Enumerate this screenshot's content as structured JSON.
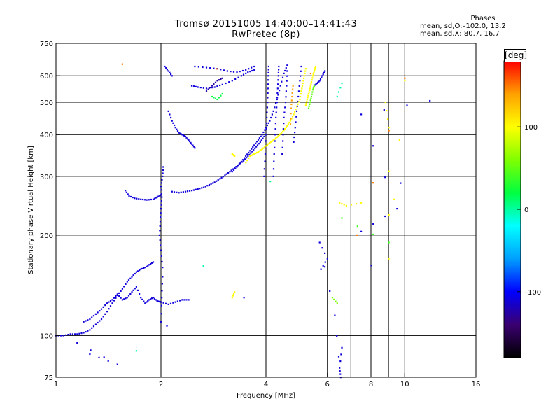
{
  "header": {
    "title_line1": "Tromsø 20151005 14:40:00–14:41:43",
    "title_line2": "RwPretec (8p)"
  },
  "phases_box": {
    "title": "Phases",
    "line1": "mean, sd,O:–102.0, 13.2",
    "line2": "mean, sd,X:  80.7, 16.7"
  },
  "colorbar": {
    "unit": "deg",
    "tick_labels": [
      "100",
      "0",
      "–100"
    ],
    "ticks": [
      100,
      0,
      -100
    ],
    "range": [
      -180,
      180
    ],
    "colors": [
      "#000000",
      "#3a0070",
      "#0000ff",
      "#00a0ff",
      "#00ffff",
      "#00ff40",
      "#80ff00",
      "#ffff00",
      "#ffa000",
      "#ff0000"
    ]
  },
  "chart_data": {
    "type": "scatter",
    "title": "Tromsø 20151005 14:40:00–14:41:43",
    "subtitle": "RwPretec (8p)",
    "xlabel": "Frequency [MHz]",
    "ylabel": "Stationary phase Virtual Height [km]",
    "x_scale": "log",
    "y_scale": "log",
    "xlim": [
      1,
      16
    ],
    "ylim": [
      75,
      750
    ],
    "x_ticks": [
      1,
      2,
      4,
      6,
      8,
      10,
      16
    ],
    "x_tick_labels": [
      "1",
      "2",
      "4",
      "6",
      "8",
      "10",
      "16"
    ],
    "y_ticks": [
      75,
      100,
      200,
      300,
      400,
      500,
      600,
      750
    ],
    "y_tick_labels": [
      "75",
      "100",
      "200",
      "300",
      "400",
      "500",
      "600",
      "750"
    ],
    "grid": true,
    "vertical_gridlines": [
      2,
      4,
      6,
      8,
      10
    ],
    "horizontal_gridlines": [
      100,
      200,
      300,
      400,
      500,
      600
    ],
    "minor_vertical_gridlines": [
      7,
      9
    ],
    "traces": [
      {
        "color_phase": -110,
        "points": [
          [
            1.0,
            100
          ],
          [
            1.05,
            100
          ],
          [
            1.1,
            101
          ],
          [
            1.15,
            101
          ],
          [
            1.2,
            102
          ],
          [
            1.25,
            104
          ],
          [
            1.3,
            108
          ],
          [
            1.35,
            112
          ],
          [
            1.4,
            118
          ],
          [
            1.45,
            125
          ],
          [
            1.5,
            132
          ],
          [
            1.55,
            138
          ],
          [
            1.6,
            145
          ],
          [
            1.65,
            150
          ],
          [
            1.7,
            155
          ],
          [
            1.75,
            158
          ],
          [
            1.8,
            160
          ],
          [
            1.85,
            163
          ],
          [
            1.9,
            166
          ]
        ]
      },
      {
        "color_phase": -110,
        "points": [
          [
            1.2,
            110
          ],
          [
            1.25,
            112
          ],
          [
            1.3,
            116
          ],
          [
            1.35,
            120
          ],
          [
            1.4,
            125
          ],
          [
            1.45,
            128
          ],
          [
            1.5,
            133
          ],
          [
            1.55,
            128
          ],
          [
            1.6,
            130
          ],
          [
            1.65,
            135
          ],
          [
            1.7,
            140
          ],
          [
            1.75,
            130
          ],
          [
            1.8,
            125
          ],
          [
            1.85,
            128
          ],
          [
            1.9,
            130
          ],
          [
            1.95,
            127
          ],
          [
            2.0,
            126
          ],
          [
            2.1,
            124
          ],
          [
            2.2,
            126
          ],
          [
            2.3,
            128
          ],
          [
            2.4,
            128
          ]
        ]
      },
      {
        "color_phase": -110,
        "points": [
          [
            1.58,
            272
          ],
          [
            1.62,
            262
          ],
          [
            1.68,
            258
          ],
          [
            1.75,
            256
          ],
          [
            1.82,
            255
          ],
          [
            1.9,
            256
          ],
          [
            1.95,
            260
          ],
          [
            2.0,
            264
          ]
        ]
      },
      {
        "color_phase": -110,
        "points": [
          [
            2.02,
            160
          ],
          [
            2.0,
            180
          ],
          [
            1.98,
            200
          ],
          [
            1.99,
            220
          ],
          [
            2.0,
            240
          ],
          [
            2.01,
            260
          ],
          [
            2.0,
            280
          ],
          [
            2.02,
            300
          ],
          [
            2.03,
            320
          ]
        ]
      },
      {
        "color_phase": -110,
        "points": [
          [
            2.0,
            110
          ],
          [
            2.01,
            130
          ],
          [
            2.02,
            150
          ]
        ]
      },
      {
        "color_phase": -110,
        "points": [
          [
            2.15,
            270
          ],
          [
            2.25,
            268
          ],
          [
            2.35,
            270
          ],
          [
            2.45,
            272
          ],
          [
            2.55,
            275
          ],
          [
            2.65,
            278
          ],
          [
            2.75,
            283
          ],
          [
            2.85,
            288
          ],
          [
            2.95,
            295
          ],
          [
            3.05,
            302
          ],
          [
            3.15,
            310
          ],
          [
            3.25,
            318
          ],
          [
            3.35,
            326
          ],
          [
            3.45,
            334
          ],
          [
            3.55,
            345
          ],
          [
            3.65,
            356
          ],
          [
            3.75,
            368
          ],
          [
            3.85,
            380
          ],
          [
            3.95,
            395
          ]
        ]
      },
      {
        "color_phase": -110,
        "points": [
          [
            3.2,
            310
          ],
          [
            3.3,
            320
          ],
          [
            3.4,
            332
          ],
          [
            3.5,
            345
          ],
          [
            3.6,
            358
          ],
          [
            3.7,
            372
          ],
          [
            3.8,
            386
          ],
          [
            3.9,
            400
          ],
          [
            4.0,
            420
          ],
          [
            4.1,
            440
          ],
          [
            4.2,
            470
          ],
          [
            4.3,
            510
          ],
          [
            4.4,
            560
          ],
          [
            4.5,
            610
          ],
          [
            4.6,
            645
          ]
        ]
      },
      {
        "color_phase": -110,
        "points": [
          [
            2.1,
            470
          ],
          [
            2.15,
            440
          ],
          [
            2.2,
            420
          ],
          [
            2.25,
            405
          ],
          [
            2.3,
            400
          ],
          [
            2.35,
            395
          ],
          [
            2.4,
            385
          ],
          [
            2.45,
            375
          ],
          [
            2.5,
            365
          ]
        ]
      },
      {
        "color_phase": -110,
        "points": [
          [
            2.45,
            560
          ],
          [
            2.55,
            555
          ],
          [
            2.7,
            550
          ],
          [
            2.85,
            555
          ],
          [
            3.0,
            565
          ],
          [
            3.2,
            580
          ],
          [
            3.4,
            600
          ],
          [
            3.55,
            615
          ],
          [
            3.7,
            625
          ]
        ]
      },
      {
        "color_phase": -110,
        "points": [
          [
            2.05,
            640
          ],
          [
            2.1,
            620
          ],
          [
            2.15,
            600
          ]
        ]
      },
      {
        "color_phase": -110,
        "points": [
          [
            2.5,
            640
          ],
          [
            2.7,
            635
          ],
          [
            2.9,
            630
          ],
          [
            3.1,
            620
          ],
          [
            3.3,
            615
          ],
          [
            3.5,
            625
          ],
          [
            3.7,
            640
          ]
        ]
      },
      {
        "color_phase": -110,
        "points": [
          [
            3.95,
            300
          ],
          [
            3.98,
            350
          ],
          [
            4.0,
            400
          ],
          [
            4.02,
            450
          ],
          [
            4.04,
            500
          ],
          [
            4.05,
            550
          ],
          [
            4.06,
            600
          ],
          [
            4.07,
            640
          ]
        ]
      },
      {
        "color_phase": -110,
        "points": [
          [
            4.2,
            300
          ],
          [
            4.22,
            350
          ],
          [
            4.25,
            400
          ],
          [
            4.27,
            450
          ],
          [
            4.3,
            500
          ],
          [
            4.32,
            550
          ],
          [
            4.34,
            600
          ],
          [
            4.35,
            640
          ]
        ]
      },
      {
        "color_phase": -110,
        "points": [
          [
            4.45,
            350
          ],
          [
            4.48,
            400
          ],
          [
            4.5,
            450
          ],
          [
            4.55,
            500
          ],
          [
            4.58,
            560
          ],
          [
            4.6,
            620
          ]
        ]
      },
      {
        "color_phase": -110,
        "points": [
          [
            4.8,
            380
          ],
          [
            4.85,
            420
          ],
          [
            4.9,
            470
          ],
          [
            4.95,
            520
          ],
          [
            5.0,
            580
          ],
          [
            5.05,
            640
          ]
        ]
      },
      {
        "color_phase": -110,
        "points": [
          [
            5.5,
            560
          ],
          [
            5.6,
            570
          ],
          [
            5.7,
            580
          ],
          [
            5.8,
            600
          ],
          [
            5.9,
            620
          ]
        ]
      },
      {
        "color_phase": 100,
        "points": [
          [
            3.5,
            330
          ],
          [
            3.6,
            345
          ],
          [
            3.7,
            350
          ],
          [
            3.8,
            355
          ],
          [
            3.9,
            362
          ],
          [
            4.0,
            370
          ],
          [
            4.1,
            378
          ],
          [
            4.2,
            385
          ],
          [
            4.3,
            393
          ],
          [
            4.4,
            402
          ],
          [
            4.5,
            412
          ],
          [
            4.6,
            425
          ],
          [
            4.7,
            440
          ],
          [
            4.8,
            460
          ],
          [
            4.9,
            485
          ],
          [
            5.0,
            510
          ],
          [
            5.05,
            540
          ],
          [
            5.1,
            570
          ],
          [
            5.15,
            600
          ],
          [
            5.2,
            630
          ]
        ]
      },
      {
        "color_phase": 100,
        "points": [
          [
            5.2,
            490
          ],
          [
            5.25,
            510
          ],
          [
            5.3,
            530
          ],
          [
            5.35,
            550
          ],
          [
            5.4,
            575
          ],
          [
            5.45,
            600
          ],
          [
            5.5,
            620
          ],
          [
            5.55,
            640
          ]
        ]
      },
      {
        "color_phase": 50,
        "points": [
          [
            5.3,
            480
          ],
          [
            5.35,
            500
          ],
          [
            5.4,
            520
          ],
          [
            5.45,
            545
          ],
          [
            5.5,
            560
          ]
        ]
      },
      {
        "color_phase": 140,
        "points": [
          [
            4.7,
            430
          ],
          [
            4.72,
            480
          ],
          [
            4.75,
            520
          ],
          [
            4.78,
            560
          ]
        ]
      },
      {
        "color_phase": -125,
        "points": [
          [
            2.7,
            540
          ],
          [
            2.8,
            560
          ],
          [
            2.9,
            580
          ],
          [
            3.0,
            590
          ]
        ]
      },
      {
        "color_phase": 20,
        "points": [
          [
            2.8,
            520
          ],
          [
            2.9,
            510
          ],
          [
            3.0,
            530
          ]
        ]
      },
      {
        "color_phase": 100,
        "points": [
          [
            3.2,
            350
          ],
          [
            3.25,
            345
          ]
        ]
      },
      {
        "color_phase": 100,
        "points": [
          [
            3.2,
            130
          ],
          [
            3.25,
            135
          ]
        ]
      },
      {
        "color_phase": 100,
        "points": [
          [
            6.5,
            250
          ],
          [
            6.8,
            245
          ],
          [
            7.5,
            250
          ]
        ]
      },
      {
        "color_phase": 100,
        "points": [
          [
            8.8,
            500
          ],
          [
            9.0,
            420
          ],
          [
            9.0,
            170
          ],
          [
            10.0,
            580
          ]
        ]
      },
      {
        "color_phase": 40,
        "points": [
          [
            9.0,
            190
          ],
          [
            6.6,
            225
          ]
        ]
      },
      {
        "color_phase": -110,
        "points": [
          [
            7.5,
            205
          ],
          [
            9.5,
            240
          ],
          [
            7.5,
            460
          ],
          [
            11.8,
            505
          ],
          [
            6.6,
            92
          ],
          [
            6.5,
            80
          ],
          [
            6.55,
            75
          ],
          [
            6.3,
            115
          ],
          [
            5.7,
            190
          ],
          [
            6.0,
            170
          ],
          [
            5.75,
            158
          ],
          [
            1.25,
            88
          ],
          [
            1.5,
            82
          ],
          [
            1.15,
            95
          ]
        ]
      },
      {
        "color_phase": 0,
        "points": [
          [
            6.6,
            570
          ],
          [
            6.4,
            520
          ],
          [
            1.7,
            90
          ]
        ]
      },
      {
        "color_phase": 60,
        "points": [
          [
            6.4,
            125
          ],
          [
            6.2,
            130
          ]
        ]
      },
      {
        "color_phase": 150,
        "points": [
          [
            1.55,
            650
          ],
          [
            10.0,
            590
          ],
          [
            7.3,
            200
          ]
        ]
      }
    ]
  }
}
